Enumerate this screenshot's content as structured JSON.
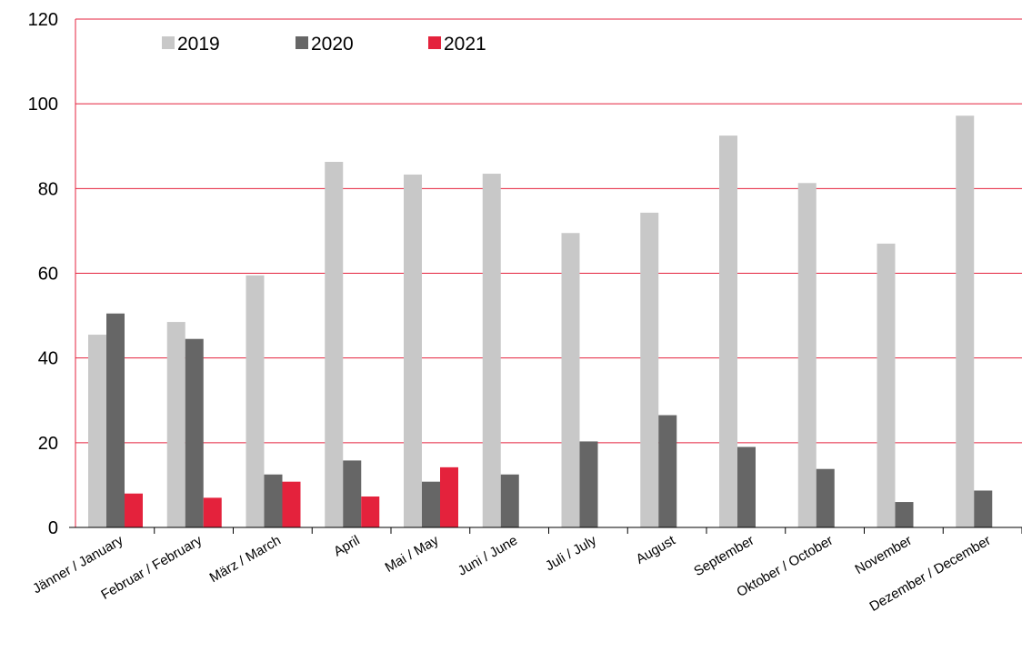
{
  "chart_data": {
    "type": "bar",
    "categories": [
      "Jänner / January",
      "Februar / February",
      "März / March",
      "April",
      "Mai / May",
      "Juni / June",
      "Juli / July",
      "August",
      "September",
      "Oktober / October",
      "November",
      "Dezember / December"
    ],
    "series": [
      {
        "name": "2019",
        "color": "#c8c8c8",
        "values": [
          45.5,
          48.5,
          59.5,
          86.3,
          83.3,
          83.5,
          69.5,
          74.3,
          92.5,
          81.3,
          67.0,
          97.2
        ]
      },
      {
        "name": "2020",
        "color": "#666666",
        "values": [
          50.5,
          44.5,
          12.5,
          15.8,
          10.8,
          12.5,
          20.3,
          26.5,
          19.0,
          13.8,
          6.0,
          8.7
        ]
      },
      {
        "name": "2021",
        "color": "#e4223c",
        "values": [
          8.0,
          7.0,
          10.8,
          7.3,
          14.2,
          null,
          null,
          null,
          null,
          null,
          null,
          null
        ]
      }
    ],
    "ylim": [
      0,
      120
    ],
    "yticks": [
      "0",
      "20",
      "40",
      "60",
      "80",
      "100",
      "120"
    ],
    "grid": true,
    "grid_color": "#e4223c",
    "legend_position": "top-left"
  }
}
